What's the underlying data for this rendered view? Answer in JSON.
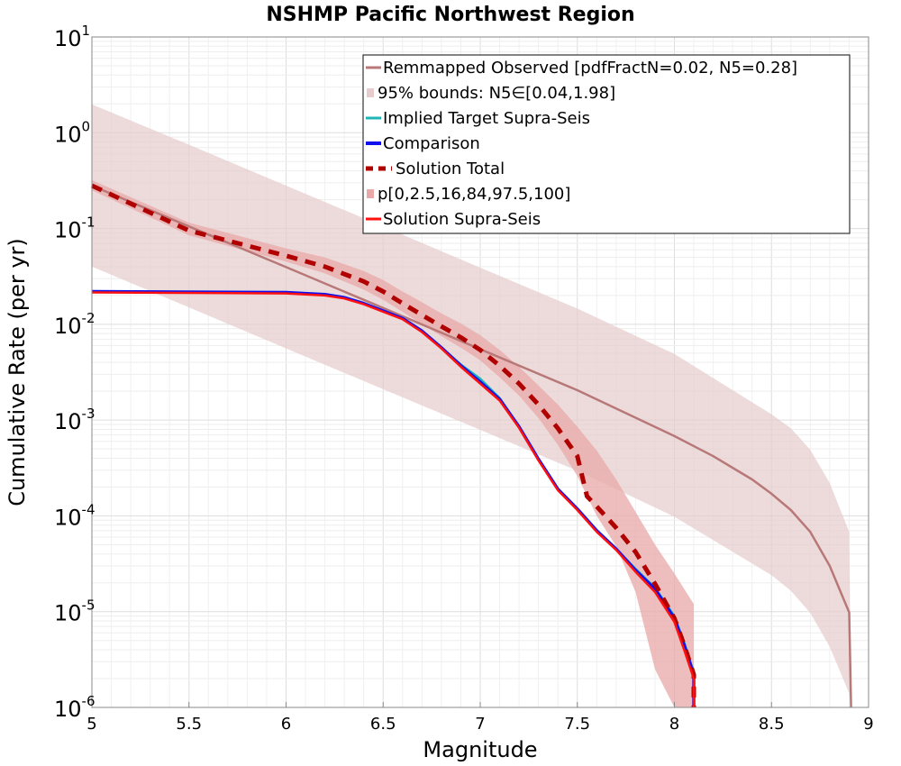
{
  "chart_data": {
    "type": "line",
    "title": "NSHMP Pacific Northwest Region",
    "xlabel": "Magnitude",
    "ylabel": "Cumulative Rate (per yr)",
    "xlim": [
      5,
      9
    ],
    "ylim": [
      1e-06,
      10
    ],
    "yscale": "log",
    "grid": true,
    "legend_position": "top-right",
    "x_ticks": [
      "5",
      "5.5",
      "6",
      "6.5",
      "7",
      "7.5",
      "8",
      "8.5",
      "9"
    ],
    "y_ticks": [
      {
        "base": "10",
        "exp": "-6",
        "value": 1e-06
      },
      {
        "base": "10",
        "exp": "-5",
        "value": 1e-05
      },
      {
        "base": "10",
        "exp": "-4",
        "value": 0.0001
      },
      {
        "base": "10",
        "exp": "-3",
        "value": 0.001
      },
      {
        "base": "10",
        "exp": "-2",
        "value": 0.01
      },
      {
        "base": "10",
        "exp": "-1",
        "value": 0.1
      },
      {
        "base": "10",
        "exp": "0",
        "value": 1
      },
      {
        "base": "10",
        "exp": "1",
        "value": 10
      }
    ],
    "series": [
      {
        "name": "Remmapped Observed [pdfFractN=0.02, N5=0.28]",
        "color": "#b87878",
        "style": "line",
        "x": [
          5.0,
          5.5,
          6.0,
          6.5,
          7.0,
          7.5,
          8.0,
          8.2,
          8.4,
          8.5,
          8.6,
          8.7,
          8.8,
          8.9,
          8.91
        ],
        "y": [
          0.28,
          0.105,
          0.0395,
          0.0148,
          0.0055,
          0.00205,
          0.00068,
          0.00042,
          0.00024,
          0.00017,
          0.000115,
          6.8e-05,
          3e-05,
          9.8e-06,
          1e-06
        ]
      },
      {
        "name": "95% bounds: N5∈[0.04,1.98]",
        "color": "#e6cccc",
        "style": "band",
        "x": [
          5.0,
          5.5,
          6.0,
          6.5,
          7.0,
          7.5,
          8.0,
          8.5,
          8.6,
          8.7,
          8.8,
          8.9,
          8.91
        ],
        "lower": [
          0.04,
          0.015,
          0.0056,
          0.0021,
          0.00079,
          0.000295,
          9.8e-05,
          2.4e-05,
          1.65e-05,
          9.7e-06,
          4.3e-06,
          1.4e-06,
          1e-06
        ],
        "upper": [
          1.98,
          0.75,
          0.28,
          0.105,
          0.039,
          0.0146,
          0.0049,
          0.00115,
          0.00082,
          0.00049,
          0.00022,
          6.8e-05,
          1e-06
        ]
      },
      {
        "name": "Implied Target Supra-Seis",
        "color": "#1fb5b5",
        "style": "line",
        "x": [
          5.0,
          6.0,
          6.2,
          6.3,
          6.4,
          6.5,
          6.6,
          6.7,
          6.8,
          6.9,
          7.0,
          7.1,
          7.2,
          7.3,
          7.4,
          7.5,
          7.6,
          7.7,
          7.8,
          7.9,
          8.0,
          8.05,
          8.1,
          8.1
        ],
        "y": [
          0.022,
          0.0215,
          0.0205,
          0.019,
          0.0165,
          0.0138,
          0.0115,
          0.0085,
          0.0057,
          0.0038,
          0.0027,
          0.0017,
          0.00085,
          0.00039,
          0.00019,
          0.000118,
          7e-05,
          4.5e-05,
          2.8e-05,
          1.78e-05,
          9e-06,
          4.8e-06,
          2.3e-06,
          1e-06
        ]
      },
      {
        "name": "Comparison",
        "color": "#1010ee",
        "style": "line",
        "x": [
          5.0,
          6.0,
          6.2,
          6.3,
          6.4,
          6.5,
          6.6,
          6.7,
          6.8,
          6.9,
          7.0,
          7.1,
          7.2,
          7.3,
          7.4,
          7.5,
          7.6,
          7.7,
          7.8,
          7.9,
          8.0,
          8.05,
          8.1,
          8.1
        ],
        "y": [
          0.022,
          0.0215,
          0.0205,
          0.019,
          0.0165,
          0.0138,
          0.0115,
          0.0085,
          0.0057,
          0.0037,
          0.0025,
          0.00165,
          0.00085,
          0.00039,
          0.00019,
          0.000118,
          7e-05,
          4.5e-05,
          2.7e-05,
          1.72e-05,
          8.5e-06,
          4.5e-06,
          2.2e-06,
          1e-06
        ]
      },
      {
        "name": "Solution Total",
        "color": "#b00000",
        "style": "dashed",
        "x": [
          5.0,
          5.5,
          6.0,
          6.2,
          6.4,
          6.5,
          6.6,
          6.7,
          6.8,
          6.9,
          7.0,
          7.1,
          7.2,
          7.3,
          7.4,
          7.5,
          7.55,
          7.6,
          7.7,
          7.8,
          7.9,
          8.0,
          8.05,
          8.1,
          8.1
        ],
        "y": [
          0.28,
          0.095,
          0.052,
          0.04,
          0.028,
          0.022,
          0.0165,
          0.0125,
          0.0095,
          0.0073,
          0.0054,
          0.0037,
          0.0024,
          0.00145,
          0.00082,
          0.00042,
          0.00016,
          0.000125,
          7.5e-05,
          4.2e-05,
          1.95e-05,
          8.5e-06,
          4.5e-06,
          2.2e-06,
          1e-06
        ]
      },
      {
        "name": "p[0,2.5,16,84,97.5,100]",
        "color": "#e8a8a8",
        "style": "band",
        "x": [
          5.0,
          5.5,
          6.0,
          6.2,
          6.4,
          6.5,
          6.6,
          6.7,
          6.8,
          6.9,
          7.0,
          7.1,
          7.2,
          7.3,
          7.4,
          7.5,
          7.6,
          7.7,
          7.8,
          7.9,
          8.0,
          8.1
        ],
        "lower": [
          0.25,
          0.085,
          0.045,
          0.034,
          0.023,
          0.018,
          0.0135,
          0.01,
          0.0075,
          0.0057,
          0.0042,
          0.0028,
          0.0018,
          0.00105,
          0.00055,
          0.00026,
          0.0001,
          4.8e-05,
          1.6e-05,
          2.5e-06,
          1e-06,
          1e-06
        ],
        "upper": [
          0.32,
          0.115,
          0.062,
          0.05,
          0.036,
          0.029,
          0.022,
          0.017,
          0.013,
          0.0102,
          0.0077,
          0.0054,
          0.0036,
          0.0023,
          0.00145,
          0.00085,
          0.00048,
          0.00024,
          0.00011,
          5e-05,
          2.5e-05,
          1.2e-05
        ]
      },
      {
        "name": "Solution Supra-Seis",
        "color": "#ff1010",
        "style": "line",
        "x": [
          5.0,
          6.0,
          6.2,
          6.3,
          6.4,
          6.5,
          6.6,
          6.7,
          6.8,
          6.9,
          7.0,
          7.1,
          7.2,
          7.3,
          7.4,
          7.5,
          7.6,
          7.7,
          7.8,
          7.9,
          8.0,
          8.05,
          8.1,
          8.1
        ],
        "y": [
          0.0215,
          0.021,
          0.02,
          0.0186,
          0.0162,
          0.0135,
          0.0113,
          0.0083,
          0.0056,
          0.0036,
          0.0024,
          0.0016,
          0.00083,
          0.00038,
          0.000185,
          0.000115,
          6.8e-05,
          4.4e-05,
          2.6e-05,
          1.6e-05,
          7.8e-06,
          4e-06,
          2e-06,
          1e-06
        ]
      }
    ]
  }
}
